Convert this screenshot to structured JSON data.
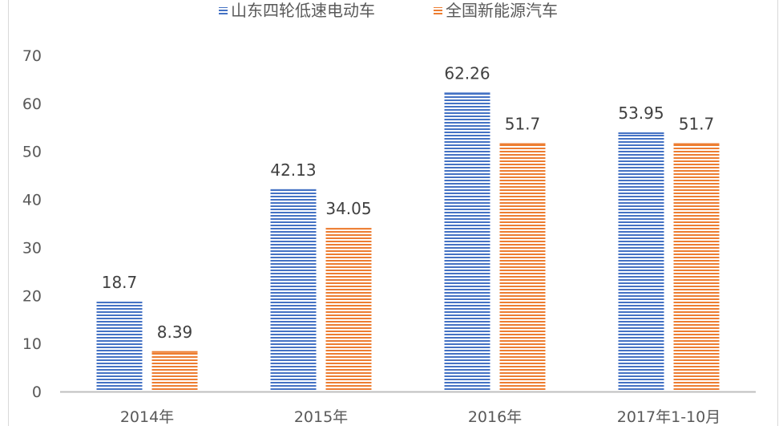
{
  "chart_data": {
    "type": "bar",
    "categories": [
      "2014年",
      "2015年",
      "2016年",
      "2017年1-10月"
    ],
    "series": [
      {
        "name": "山东四轮低速电动车",
        "values": [
          18.7,
          42.13,
          62.26,
          53.95
        ],
        "labels": [
          "18.7",
          "42.13",
          "62.26",
          "53.95"
        ],
        "color": "#4472c4"
      },
      {
        "name": "全国新能源汽车",
        "values": [
          8.39,
          34.05,
          51.7,
          51.7
        ],
        "labels": [
          "8.39",
          "34.05",
          "51.7",
          "51.7"
        ],
        "color": "#ed7d31"
      }
    ],
    "ylim": [
      0,
      70
    ],
    "yticks": [
      "0",
      "10",
      "20",
      "30",
      "40",
      "50",
      "60",
      "70"
    ],
    "grid": false,
    "legend_position": "top",
    "fill_pattern": "horizontal-stripes"
  }
}
